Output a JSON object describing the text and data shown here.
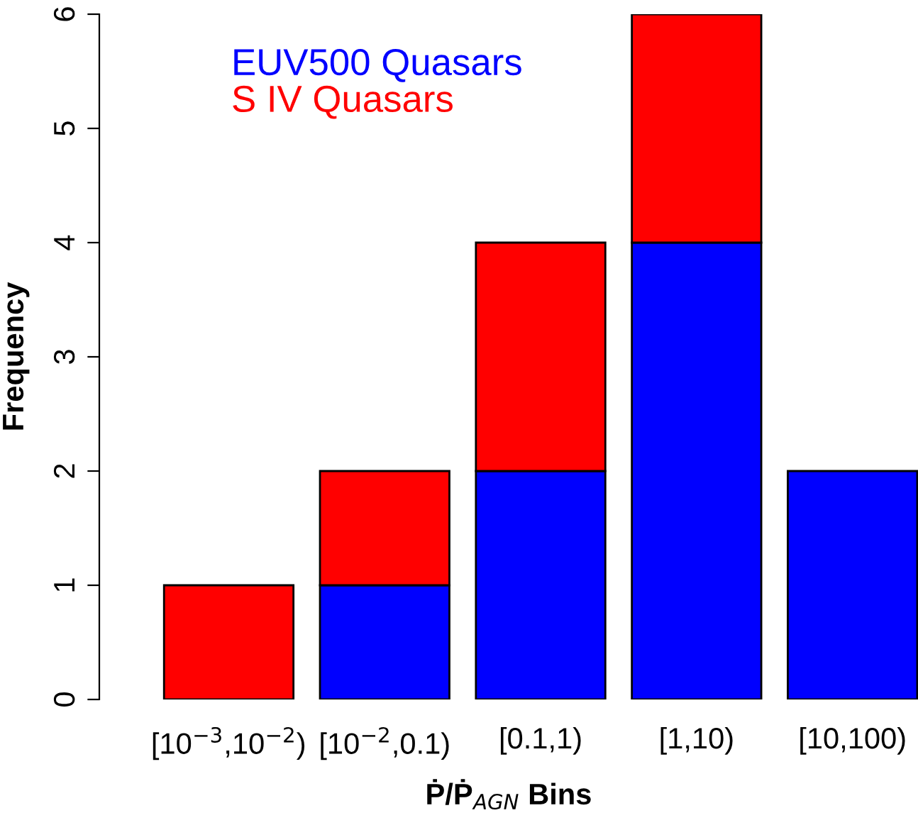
{
  "chart_data": {
    "type": "bar",
    "stacked": true,
    "xlabel": "Ṗ/Ṗ$_{AGN}$ Bins",
    "ylabel": "Frequency",
    "categories": [
      "[10$^{−3}$,10$^{−2}$)",
      "[10$^{−2}$,0.1)",
      "[0.1,1)",
      "[1,10)",
      "[10,100)"
    ],
    "series": [
      {
        "name": "EUV500 Quasars",
        "color": "#0000ff",
        "values": [
          0,
          1,
          2,
          4,
          2
        ]
      },
      {
        "name": "S IV Quasars",
        "color": "#ff0000",
        "values": [
          1,
          1,
          2,
          2,
          0
        ]
      }
    ],
    "ylim": [
      0,
      6
    ],
    "yticks": [
      0,
      1,
      2,
      3,
      4,
      5,
      6
    ],
    "legend": "top left",
    "grid": false
  }
}
